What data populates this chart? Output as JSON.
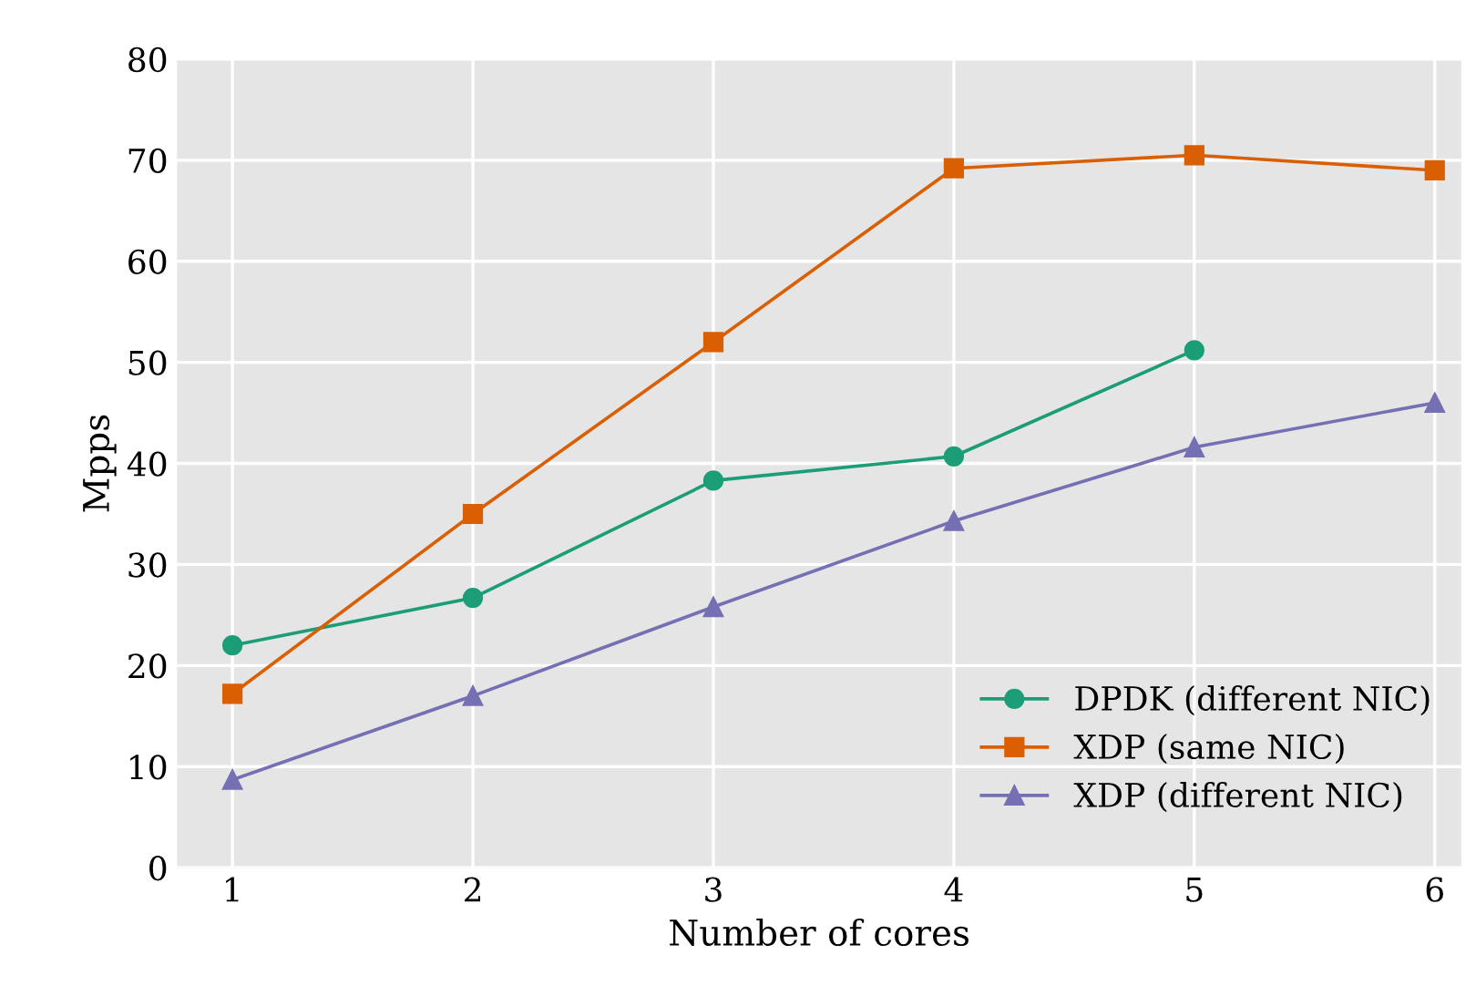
{
  "chart_data": {
    "type": "line",
    "xlabel": "Number of cores",
    "ylabel": "Mpps",
    "x": [
      1,
      2,
      3,
      4,
      5,
      6
    ],
    "xlim": [
      0.77,
      6.11
    ],
    "xticks": [
      1,
      2,
      3,
      4,
      5,
      6
    ],
    "ylim": [
      0,
      80
    ],
    "yticks": [
      0,
      10,
      20,
      30,
      40,
      50,
      60,
      70,
      80
    ],
    "grid": true,
    "legend": "bottom right",
    "series": [
      {
        "name": "DPDK (different NIC)",
        "color": "#1b9e77",
        "marker": "circle",
        "values": [
          22,
          26.7,
          38.3,
          40.7,
          51.2,
          null
        ]
      },
      {
        "name": "XDP (same NIC)",
        "color": "#d95f02",
        "marker": "square",
        "values": [
          17.2,
          35,
          52,
          69.2,
          70.5,
          69
        ]
      },
      {
        "name": "XDP (different NIC)",
        "color": "#7570b3",
        "marker": "triangle",
        "values": [
          8.7,
          17,
          25.8,
          34.3,
          41.6,
          46
        ]
      }
    ]
  }
}
